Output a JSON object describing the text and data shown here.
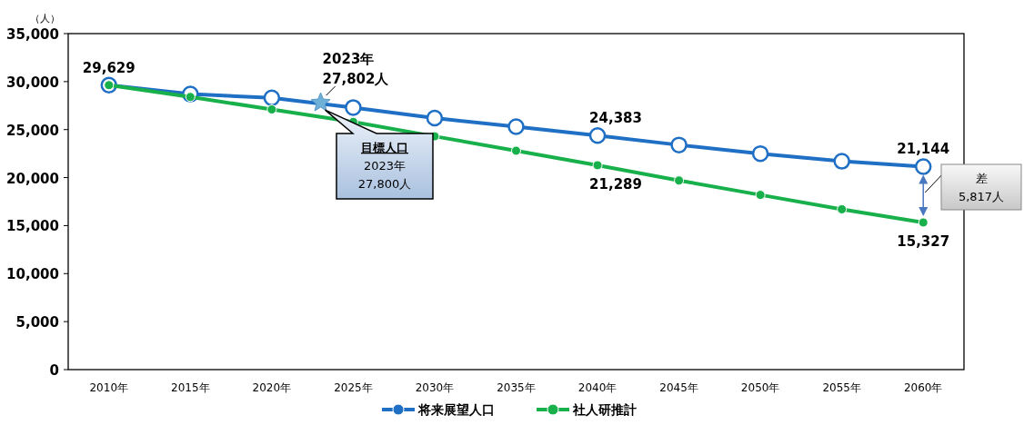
{
  "chart_data": {
    "type": "line",
    "ylabel": "（人）",
    "x": [
      2010,
      2015,
      2020,
      2025,
      2030,
      2035,
      2040,
      2045,
      2050,
      2055,
      2060
    ],
    "xlim": [
      2007.5,
      2062.5
    ],
    "xticks": [
      {
        "value": 2010,
        "label": "2010年"
      },
      {
        "value": 2015,
        "label": "2015年"
      },
      {
        "value": 2020,
        "label": "2020年"
      },
      {
        "value": 2025,
        "label": "2025年"
      },
      {
        "value": 2030,
        "label": "2030年"
      },
      {
        "value": 2035,
        "label": "2035年"
      },
      {
        "value": 2040,
        "label": "2040年"
      },
      {
        "value": 2045,
        "label": "2045年"
      },
      {
        "value": 2050,
        "label": "2050年"
      },
      {
        "value": 2055,
        "label": "2055年"
      },
      {
        "value": 2060,
        "label": "2060年"
      }
    ],
    "ylim": [
      0,
      35000
    ],
    "yticks": [
      {
        "value": 0,
        "label": "0"
      },
      {
        "value": 5000,
        "label": "5,000"
      },
      {
        "value": 10000,
        "label": "10,000"
      },
      {
        "value": 15000,
        "label": "15,000"
      },
      {
        "value": 20000,
        "label": "20,000"
      },
      {
        "value": 25000,
        "label": "25,000"
      },
      {
        "value": 30000,
        "label": "30,000"
      },
      {
        "value": 35000,
        "label": "35,000"
      }
    ],
    "grid": false,
    "legend": "bottom",
    "marker": "circle",
    "line_style": "solid",
    "series": [
      {
        "name": "将来展望人口",
        "color": "#1f6fc5",
        "values": [
          29629,
          28700,
          28300,
          27300,
          26200,
          25300,
          24383,
          23400,
          22500,
          21700,
          21144
        ],
        "value_labels": [
          "29,629",
          null,
          null,
          null,
          null,
          null,
          "24,383",
          null,
          null,
          null,
          "21,144"
        ]
      },
      {
        "name": "社人研推計",
        "color": "#18b04a",
        "values": [
          29629,
          28400,
          27100,
          25800,
          24300,
          22800,
          21289,
          19700,
          18200,
          16700,
          15327
        ],
        "value_labels": [
          null,
          null,
          null,
          null,
          null,
          null,
          "21,289",
          null,
          null,
          null,
          "15,327"
        ]
      },
      {
        "type": "scatter",
        "marker": "star",
        "color": "#6fb0d8",
        "x": [
          2023
        ],
        "values": [
          27802
        ]
      }
    ],
    "annotations": [
      {
        "text": "2023年\n27,802人",
        "x": 2023,
        "y": 27802
      },
      "目標人口\n2023年\n27,800人",
      "差\n5,817人"
    ]
  }
}
